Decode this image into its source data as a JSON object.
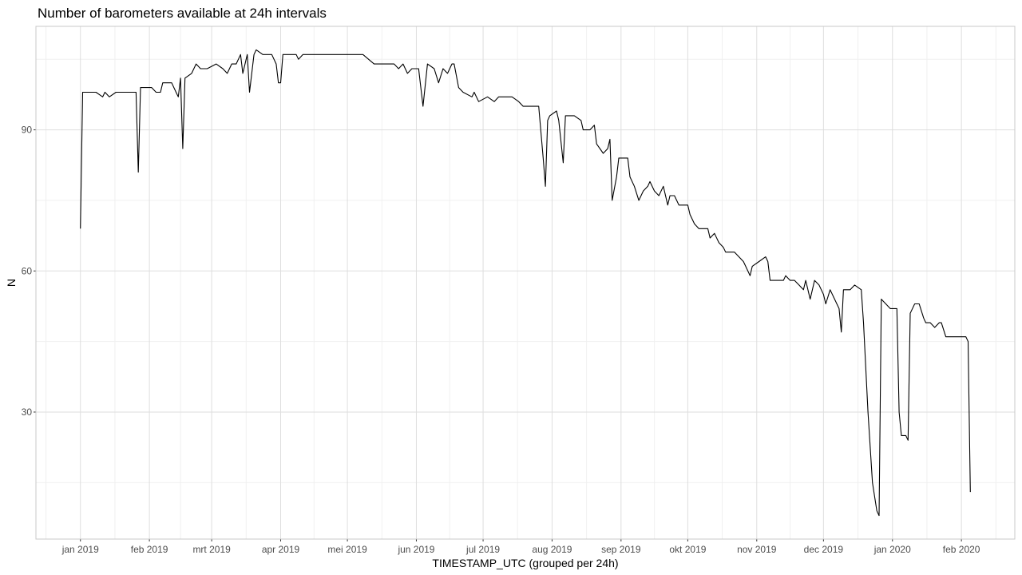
{
  "chart_data": {
    "type": "line",
    "title": "Number of barometers available at 24h intervals",
    "x_label": "TIMESTAMP_UTC (grouped per 24h)",
    "y_label": "N",
    "color": "#000000",
    "grid": true,
    "xlim": [
      -20,
      420
    ],
    "ylim": [
      3,
      112
    ],
    "yticks": [
      30,
      60,
      90
    ],
    "xticks": [
      {
        "value": 0,
        "label": "jan 2019"
      },
      {
        "value": 31,
        "label": "feb 2019"
      },
      {
        "value": 59,
        "label": "mrt 2019"
      },
      {
        "value": 90,
        "label": "apr 2019"
      },
      {
        "value": 120,
        "label": "mei 2019"
      },
      {
        "value": 151,
        "label": "jun 2019"
      },
      {
        "value": 181,
        "label": "jul 2019"
      },
      {
        "value": 212,
        "label": "aug 2019"
      },
      {
        "value": 243,
        "label": "sep 2019"
      },
      {
        "value": 273,
        "label": "okt 2019"
      },
      {
        "value": 304,
        "label": "nov 2019"
      },
      {
        "value": 334,
        "label": "dec 2019"
      },
      {
        "value": 365,
        "label": "jan 2020"
      },
      {
        "value": 396,
        "label": "feb 2020"
      }
    ],
    "x": [
      0,
      1,
      7,
      10,
      11,
      13,
      16,
      25,
      26,
      27,
      32,
      34,
      36,
      37,
      41,
      43,
      44,
      45,
      46,
      47,
      50,
      52,
      54,
      57,
      61,
      64,
      66,
      68,
      70,
      72,
      73,
      75,
      76,
      78,
      79,
      82,
      86,
      88,
      89,
      90,
      91,
      97,
      98,
      100,
      107,
      127,
      132,
      141,
      143,
      145,
      147,
      149,
      152,
      154,
      156,
      159,
      161,
      163,
      165,
      167,
      168,
      170,
      172,
      176,
      177,
      179,
      183,
      186,
      188,
      194,
      197,
      199,
      206,
      208,
      209,
      210,
      211,
      214,
      215,
      217,
      218,
      222,
      225,
      226,
      229,
      231,
      232,
      235,
      237,
      238,
      239,
      241,
      242,
      246,
      247,
      249,
      251,
      253,
      255,
      256,
      258,
      260,
      262,
      264,
      265,
      267,
      269,
      273,
      274,
      276,
      278,
      282,
      283,
      285,
      287,
      289,
      290,
      294,
      296,
      298,
      299,
      301,
      302,
      305,
      308,
      309,
      310,
      316,
      317,
      319,
      321,
      323,
      325,
      326,
      328,
      330,
      332,
      334,
      335,
      337,
      339,
      341,
      342,
      343,
      344,
      346,
      348,
      351,
      352,
      354,
      356,
      358,
      359,
      360,
      362,
      364,
      367,
      368,
      369,
      371,
      372,
      373,
      375,
      377,
      379,
      380,
      382,
      384,
      386,
      387,
      389,
      398,
      399,
      400
    ],
    "values": [
      69,
      98,
      98,
      97,
      98,
      97,
      98,
      98,
      81,
      99,
      99,
      98,
      98,
      100,
      100,
      98,
      97,
      101,
      86,
      101,
      102,
      104,
      103,
      103,
      104,
      103,
      102,
      104,
      104,
      106,
      102,
      106,
      98,
      106,
      107,
      106,
      106,
      104,
      100,
      100,
      106,
      106,
      105,
      106,
      106,
      106,
      104,
      104,
      103,
      104,
      102,
      103,
      103,
      95,
      104,
      103,
      100,
      103,
      102,
      104,
      104,
      99,
      98,
      97,
      98,
      96,
      97,
      96,
      97,
      97,
      96,
      95,
      95,
      84,
      78,
      92,
      93,
      94,
      92,
      83,
      93,
      93,
      92,
      90,
      90,
      91,
      87,
      85,
      86,
      88,
      75,
      80,
      84,
      84,
      80,
      78,
      75,
      77,
      78,
      79,
      77,
      76,
      78,
      74,
      76,
      76,
      74,
      74,
      72,
      70,
      69,
      69,
      67,
      68,
      66,
      65,
      64,
      64,
      63,
      62,
      61,
      59,
      61,
      62,
      63,
      62,
      58,
      58,
      59,
      58,
      58,
      57,
      56,
      58,
      54,
      58,
      57,
      55,
      53,
      56,
      54,
      52,
      47,
      56,
      56,
      56,
      57,
      56,
      49,
      30,
      15,
      9,
      8,
      54,
      53,
      52,
      52,
      30,
      25,
      25,
      24,
      51,
      53,
      53,
      50,
      49,
      49,
      48,
      49,
      49,
      46,
      46,
      45,
      13
    ]
  }
}
